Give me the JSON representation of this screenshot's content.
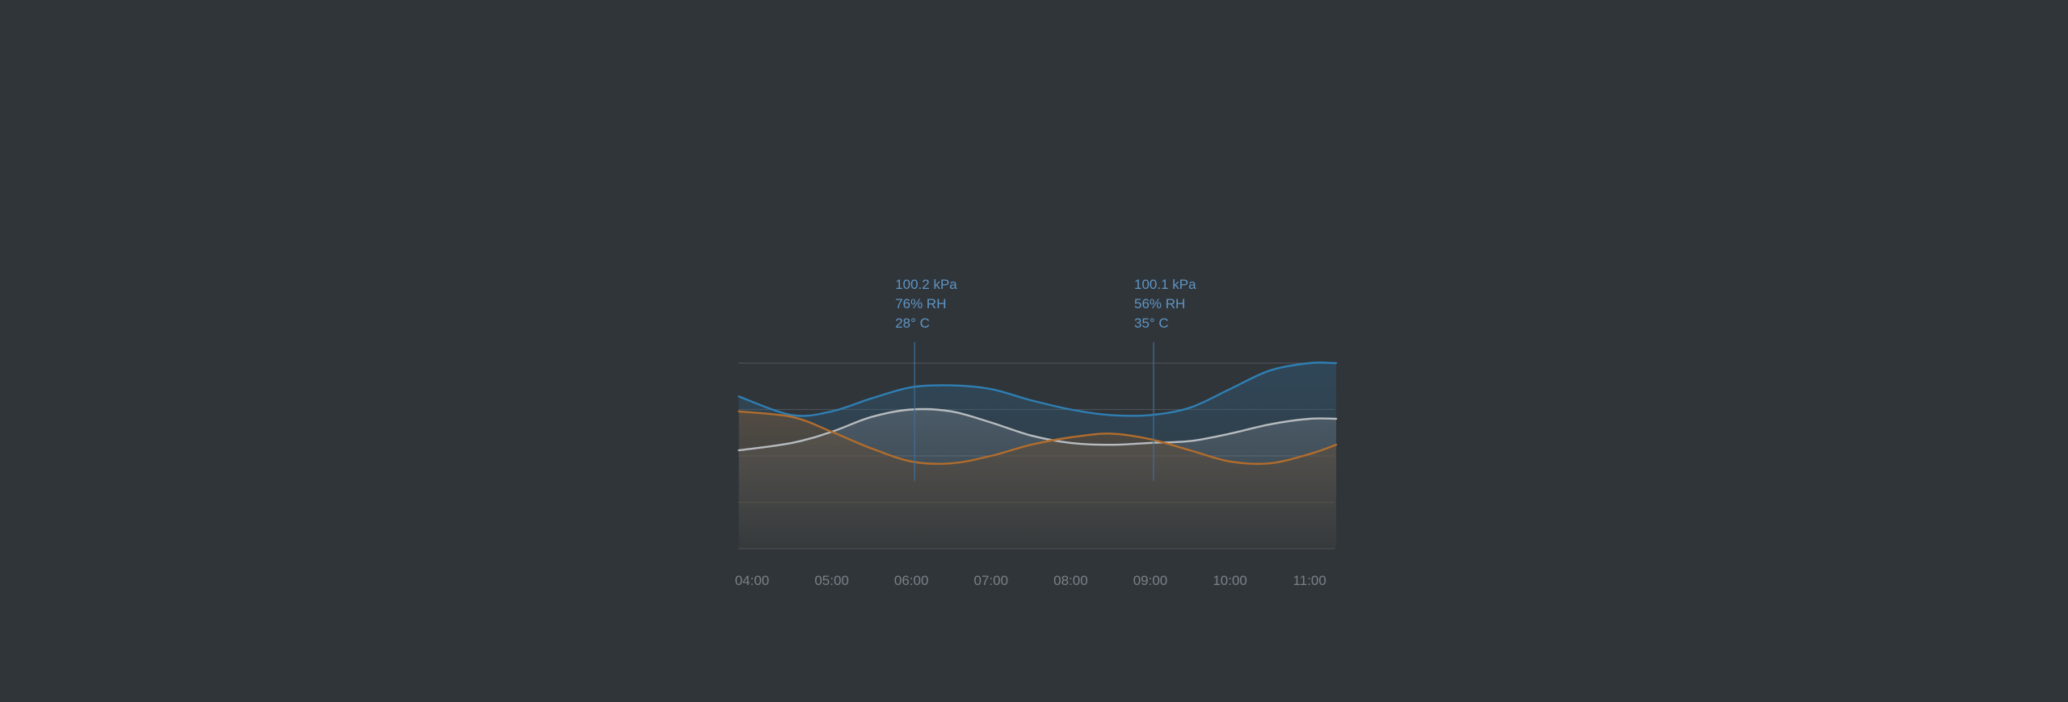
{
  "chart_data": {
    "type": "area",
    "title": "",
    "xlabel": "",
    "ylabel": "",
    "grid": true,
    "x_ticks": [
      "04:00",
      "05:00",
      "06:00",
      "07:00",
      "08:00",
      "09:00",
      "10:00",
      "11:00"
    ],
    "x_domain": [
      "03:50",
      "11:20"
    ],
    "ylim": [
      0,
      100
    ],
    "series": [
      {
        "color": "#2f7fb3",
        "points": [
          [
            "03:50",
            82
          ],
          [
            "04:30",
            72
          ],
          [
            "05:00",
            74
          ],
          [
            "05:30",
            81
          ],
          [
            "06:00",
            87
          ],
          [
            "06:30",
            88
          ],
          [
            "07:00",
            86
          ],
          [
            "07:30",
            80
          ],
          [
            "08:00",
            75
          ],
          [
            "08:30",
            72
          ],
          [
            "09:00",
            72
          ],
          [
            "09:30",
            76
          ],
          [
            "10:00",
            86
          ],
          [
            "10:30",
            96
          ],
          [
            "11:00",
            100
          ],
          [
            "11:20",
            100
          ]
        ]
      },
      {
        "color": "#b7bcc0",
        "points": [
          [
            "03:50",
            53
          ],
          [
            "04:30",
            57
          ],
          [
            "05:00",
            63
          ],
          [
            "05:30",
            71
          ],
          [
            "06:00",
            75
          ],
          [
            "06:30",
            74
          ],
          [
            "07:00",
            68
          ],
          [
            "07:30",
            61
          ],
          [
            "08:00",
            57
          ],
          [
            "08:30",
            56
          ],
          [
            "09:00",
            57
          ],
          [
            "09:30",
            58
          ],
          [
            "10:00",
            62
          ],
          [
            "10:30",
            67
          ],
          [
            "11:00",
            70
          ],
          [
            "11:20",
            70
          ]
        ]
      },
      {
        "color": "#b26d2c",
        "points": [
          [
            "03:50",
            74
          ],
          [
            "04:30",
            71
          ],
          [
            "05:00",
            63
          ],
          [
            "05:30",
            54
          ],
          [
            "06:00",
            47
          ],
          [
            "06:30",
            46
          ],
          [
            "07:00",
            50
          ],
          [
            "07:30",
            56
          ],
          [
            "08:00",
            60
          ],
          [
            "08:30",
            62
          ],
          [
            "09:00",
            59
          ],
          [
            "09:30",
            53
          ],
          [
            "10:00",
            47
          ],
          [
            "10:30",
            46
          ],
          [
            "11:00",
            51
          ],
          [
            "11:20",
            56
          ]
        ]
      }
    ],
    "annotations": [
      {
        "x": "06:00",
        "lines": [
          "100.2 kPa",
          "76% RH",
          "28° C"
        ]
      },
      {
        "x": "09:00",
        "lines": [
          "100.1 kPa",
          "56% RH",
          "35° C"
        ]
      }
    ]
  }
}
